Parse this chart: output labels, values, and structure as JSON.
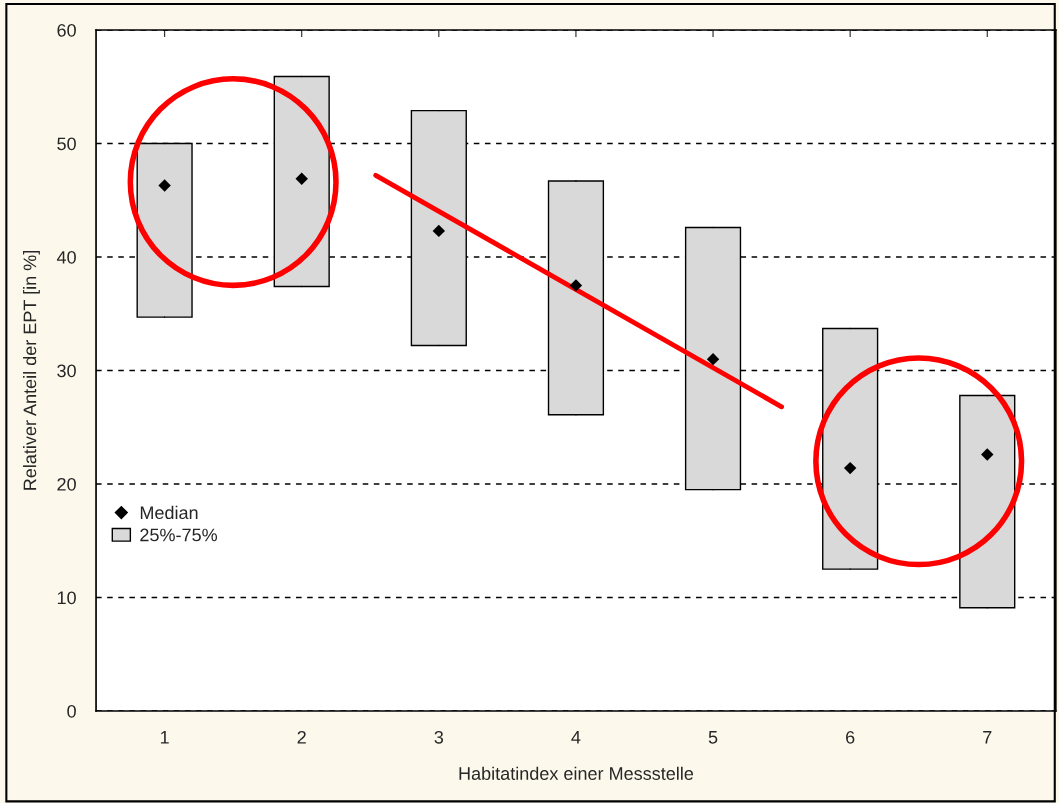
{
  "chart_data": {
    "type": "box",
    "xlabel": "Habitatindex einer Messstelle",
    "ylabel": "Relativer Anteil der EPT [in %]",
    "xlim": [
      0.5,
      7.5
    ],
    "xticks": [
      1,
      2,
      3,
      4,
      5,
      6,
      7
    ],
    "ylim": [
      0,
      60
    ],
    "yticks": [
      0,
      10,
      20,
      30,
      40,
      50,
      60
    ],
    "grid": "y",
    "legend": "left",
    "series": [
      {
        "name": "Median",
        "type": "scatter",
        "marker": "diamond",
        "color": "#000000",
        "x": [
          1,
          2,
          3,
          4,
          5,
          6,
          7
        ],
        "values": [
          46.3,
          46.9,
          42.3,
          37.5,
          31.0,
          21.4,
          22.6
        ]
      },
      {
        "name": "25%-75%",
        "color": "#d9d9d9",
        "x": [
          1,
          2,
          3,
          4,
          5,
          6,
          7
        ],
        "boxes": [
          {
            "low": 34.7,
            "q1": 34.7,
            "q3": 50.0,
            "high": 50.0
          },
          {
            "low": 37.4,
            "q1": 37.4,
            "q3": 55.9,
            "high": 55.9
          },
          {
            "low": 32.2,
            "q1": 32.2,
            "q3": 52.9,
            "high": 52.9
          },
          {
            "low": 26.1,
            "q1": 26.1,
            "q3": 46.7,
            "high": 46.7
          },
          {
            "low": 19.5,
            "q1": 19.5,
            "q3": 42.6,
            "high": 42.6
          },
          {
            "low": 12.5,
            "q1": 12.5,
            "q3": 33.7,
            "high": 33.7
          },
          {
            "low": 9.1,
            "q1": 9.1,
            "q3": 27.8,
            "high": 27.8
          }
        ]
      },
      {
        "type": "line",
        "color": "#ff0000",
        "x": [
          2.54,
          5.5
        ],
        "values": [
          47.2,
          26.8
        ]
      }
    ]
  }
}
